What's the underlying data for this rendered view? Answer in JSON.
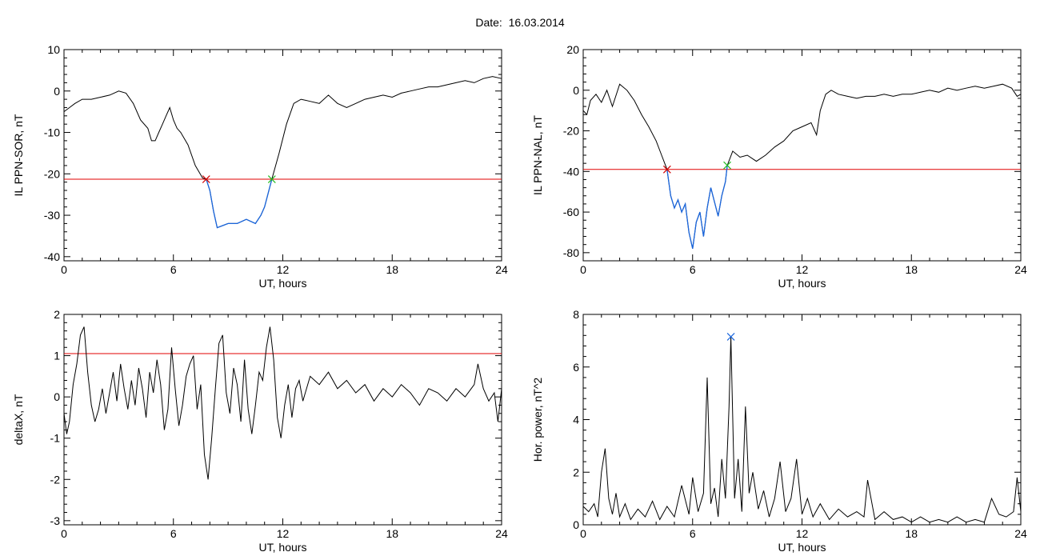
{
  "page": {
    "date_title": "Date:  16.03.2014",
    "colors": {
      "threshold": "#e00000",
      "onset": "#d00000",
      "offset": "#22bb22",
      "highlight": "#1a66dd",
      "peak": "#1a66dd",
      "trace": "#000000"
    }
  },
  "chart_data": [
    {
      "id": "il-ppn-sor",
      "type": "line",
      "xlabel": "UT, hours",
      "ylabel": "IL PPN-SOR, nT",
      "xlim": [
        0,
        24
      ],
      "ylim": [
        -41,
        10
      ],
      "xticks": [
        0,
        6,
        12,
        18,
        24
      ],
      "yticks": [
        10,
        0,
        -10,
        -20,
        -30,
        -40
      ],
      "threshold": -21.3,
      "onset": [
        7.8,
        -21.3
      ],
      "offset": [
        11.4,
        -21.3
      ],
      "highlight_range": [
        7.8,
        11.4
      ],
      "series": [
        {
          "x": [
            0,
            0.3,
            0.6,
            1.0,
            1.5,
            2.0,
            2.5,
            3.0,
            3.4,
            3.8,
            4.2,
            4.6,
            4.8,
            5.0,
            5.2,
            5.4,
            5.6,
            5.8,
            6.0,
            6.2,
            6.4,
            6.8,
            7.2,
            7.6,
            7.8,
            8.0,
            8.2,
            8.4,
            8.7,
            9.0,
            9.5,
            10.0,
            10.5,
            10.8,
            11.0,
            11.4,
            11.8,
            12.2,
            12.6,
            13.0,
            13.5,
            14.0,
            14.5,
            15.0,
            15.5,
            16.0,
            16.5,
            17.0,
            17.5,
            18.0,
            18.5,
            19.0,
            19.5,
            20.0,
            20.5,
            21.0,
            21.5,
            22.0,
            22.5,
            23.0,
            23.5,
            24.0
          ],
          "y": [
            -5,
            -4,
            -3,
            -2,
            -2,
            -1.5,
            -1,
            0,
            -0.5,
            -3,
            -7,
            -9,
            -12,
            -12,
            -10,
            -8,
            -6,
            -4,
            -7,
            -9,
            -10,
            -13,
            -18,
            -21,
            -21.3,
            -24,
            -29,
            -33,
            -32.5,
            -32,
            -32,
            -31,
            -32,
            -30,
            -28,
            -21.3,
            -15,
            -8,
            -3,
            -2,
            -2.5,
            -3,
            -1,
            -3,
            -4,
            -3,
            -2,
            -1.5,
            -1,
            -1.5,
            -0.5,
            0,
            0.5,
            1,
            1,
            1.5,
            2,
            2.5,
            2,
            3,
            3.5,
            3
          ]
        }
      ]
    },
    {
      "id": "il-ppn-nal",
      "type": "line",
      "xlabel": "UT, hours",
      "ylabel": "IL PPN-NAL, nT",
      "xlim": [
        0,
        24
      ],
      "ylim": [
        -84,
        20
      ],
      "xticks": [
        0,
        6,
        12,
        18,
        24
      ],
      "yticks": [
        20,
        0,
        -20,
        -40,
        -60,
        -80
      ],
      "threshold": -39,
      "onset": [
        4.6,
        -39
      ],
      "offset": [
        7.9,
        -37
      ],
      "highlight_range": [
        4.6,
        7.9
      ],
      "series": [
        {
          "x": [
            0,
            0.2,
            0.4,
            0.7,
            1.0,
            1.3,
            1.6,
            2.0,
            2.4,
            2.8,
            3.2,
            3.6,
            4.0,
            4.3,
            4.6,
            4.8,
            5.0,
            5.2,
            5.4,
            5.6,
            5.8,
            6.0,
            6.2,
            6.4,
            6.6,
            6.8,
            7.0,
            7.2,
            7.4,
            7.6,
            7.8,
            7.9,
            8.2,
            8.6,
            9.0,
            9.5,
            10.0,
            10.5,
            11.0,
            11.5,
            12.0,
            12.5,
            12.8,
            13.0,
            13.3,
            13.6,
            14.0,
            14.5,
            15.0,
            15.5,
            16.0,
            16.5,
            17.0,
            17.5,
            18.0,
            18.5,
            19.0,
            19.5,
            20.0,
            20.5,
            21.0,
            21.5,
            22.0,
            22.5,
            23.0,
            23.5,
            23.8,
            24.0
          ],
          "y": [
            -10,
            -12,
            -5,
            -2,
            -6,
            0,
            -8,
            3,
            0,
            -5,
            -12,
            -18,
            -25,
            -32,
            -39,
            -52,
            -58,
            -54,
            -60,
            -56,
            -70,
            -78,
            -65,
            -60,
            -72,
            -58,
            -48,
            -55,
            -62,
            -52,
            -45,
            -37,
            -30,
            -33,
            -32,
            -35,
            -32,
            -28,
            -25,
            -20,
            -18,
            -16,
            -22,
            -10,
            -2,
            0,
            -2,
            -3,
            -4,
            -3,
            -3,
            -2,
            -3,
            -2,
            -2,
            -1,
            0,
            -1,
            1,
            0,
            1,
            2,
            1,
            2,
            3,
            1,
            -3,
            -2
          ]
        }
      ]
    },
    {
      "id": "deltax",
      "type": "line",
      "xlabel": "UT, hours",
      "ylabel": "deltaX, nT",
      "xlim": [
        0,
        24
      ],
      "ylim": [
        -3.1,
        2
      ],
      "xticks": [
        0,
        6,
        12,
        18,
        24
      ],
      "yticks": [
        2,
        1,
        0,
        -1,
        -2,
        -3
      ],
      "threshold": 1.05,
      "series": [
        {
          "x": [
            0,
            0.15,
            0.3,
            0.5,
            0.7,
            0.9,
            1.1,
            1.3,
            1.5,
            1.7,
            1.9,
            2.1,
            2.3,
            2.5,
            2.7,
            2.9,
            3.1,
            3.3,
            3.5,
            3.7,
            3.9,
            4.1,
            4.3,
            4.5,
            4.7,
            4.9,
            5.1,
            5.3,
            5.5,
            5.7,
            5.9,
            6.1,
            6.3,
            6.5,
            6.7,
            6.9,
            7.1,
            7.3,
            7.5,
            7.7,
            7.9,
            8.1,
            8.3,
            8.5,
            8.7,
            8.9,
            9.1,
            9.3,
            9.5,
            9.7,
            9.9,
            10.1,
            10.3,
            10.5,
            10.7,
            10.9,
            11.1,
            11.3,
            11.5,
            11.7,
            11.9,
            12.1,
            12.3,
            12.5,
            12.7,
            12.9,
            13.1,
            13.5,
            14.0,
            14.5,
            15.0,
            15.5,
            16.0,
            16.5,
            17.0,
            17.5,
            18.0,
            18.5,
            19.0,
            19.5,
            20.0,
            20.5,
            21.0,
            21.5,
            22.0,
            22.5,
            22.7,
            23.0,
            23.3,
            23.6,
            23.8,
            24.0
          ],
          "y": [
            -0.4,
            -0.9,
            -0.6,
            0.3,
            0.8,
            1.5,
            1.7,
            0.6,
            -0.2,
            -0.6,
            -0.3,
            0.2,
            -0.4,
            0.1,
            0.6,
            -0.1,
            0.8,
            0.2,
            -0.3,
            0.4,
            -0.2,
            0.7,
            0.2,
            -0.5,
            0.6,
            0.1,
            0.9,
            0.3,
            -0.8,
            -0.3,
            1.2,
            0.2,
            -0.7,
            -0.2,
            0.5,
            0.8,
            1.0,
            -0.3,
            0.3,
            -1.4,
            -2.0,
            -1.0,
            0.2,
            1.3,
            1.5,
            0.1,
            -0.4,
            0.7,
            0.3,
            -0.6,
            0.9,
            -0.3,
            -0.9,
            -0.2,
            0.6,
            0.4,
            1.2,
            1.7,
            0.9,
            -0.5,
            -1.0,
            -0.2,
            0.3,
            -0.5,
            0.2,
            0.4,
            -0.1,
            0.5,
            0.3,
            0.6,
            0.2,
            0.4,
            0.1,
            0.3,
            -0.1,
            0.2,
            0.0,
            0.3,
            0.1,
            -0.2,
            0.2,
            0.1,
            -0.1,
            0.2,
            0.0,
            0.3,
            0.8,
            0.2,
            -0.1,
            0.1,
            -0.6,
            0.2
          ]
        }
      ]
    },
    {
      "id": "hor-power",
      "type": "line",
      "xlabel": "UT, hours",
      "ylabel": "Hor. power, nT^2",
      "xlim": [
        0,
        24
      ],
      "ylim": [
        0,
        8
      ],
      "xticks": [
        0,
        6,
        12,
        18,
        24
      ],
      "yticks": [
        8,
        6,
        4,
        2,
        0
      ],
      "peak": [
        8.1,
        7.15
      ],
      "series": [
        {
          "x": [
            0,
            0.3,
            0.6,
            0.8,
            1.0,
            1.2,
            1.4,
            1.6,
            1.8,
            2.0,
            2.3,
            2.6,
            3.0,
            3.4,
            3.8,
            4.2,
            4.6,
            5.0,
            5.4,
            5.8,
            6.0,
            6.3,
            6.6,
            6.8,
            7.0,
            7.2,
            7.4,
            7.6,
            7.8,
            8.0,
            8.1,
            8.3,
            8.5,
            8.7,
            8.9,
            9.1,
            9.3,
            9.6,
            9.9,
            10.2,
            10.5,
            10.8,
            11.1,
            11.4,
            11.7,
            12.0,
            12.3,
            12.6,
            13.0,
            13.5,
            14.0,
            14.5,
            15.0,
            15.4,
            15.6,
            16.0,
            16.5,
            17.0,
            17.5,
            18.0,
            18.5,
            19.0,
            19.5,
            20.0,
            20.5,
            21.0,
            21.5,
            22.0,
            22.4,
            22.8,
            23.2,
            23.6,
            23.8,
            24.0
          ],
          "y": [
            0.7,
            0.5,
            0.8,
            0.3,
            2.0,
            2.9,
            1.0,
            0.4,
            1.2,
            0.3,
            0.8,
            0.2,
            0.6,
            0.3,
            0.9,
            0.2,
            0.7,
            0.3,
            1.5,
            0.4,
            1.8,
            0.5,
            1.2,
            5.6,
            0.8,
            1.4,
            0.3,
            2.5,
            1.0,
            4.5,
            7.15,
            1.0,
            2.5,
            0.5,
            4.5,
            1.2,
            2.0,
            0.6,
            1.3,
            0.3,
            1.0,
            2.4,
            0.5,
            1.0,
            2.5,
            0.4,
            1.0,
            0.3,
            0.8,
            0.2,
            0.6,
            0.3,
            0.5,
            0.3,
            1.7,
            0.2,
            0.5,
            0.2,
            0.3,
            0.1,
            0.3,
            0.1,
            0.2,
            0.1,
            0.3,
            0.1,
            0.2,
            0.1,
            1.0,
            0.4,
            0.3,
            0.5,
            1.8,
            0.5
          ]
        }
      ]
    }
  ]
}
